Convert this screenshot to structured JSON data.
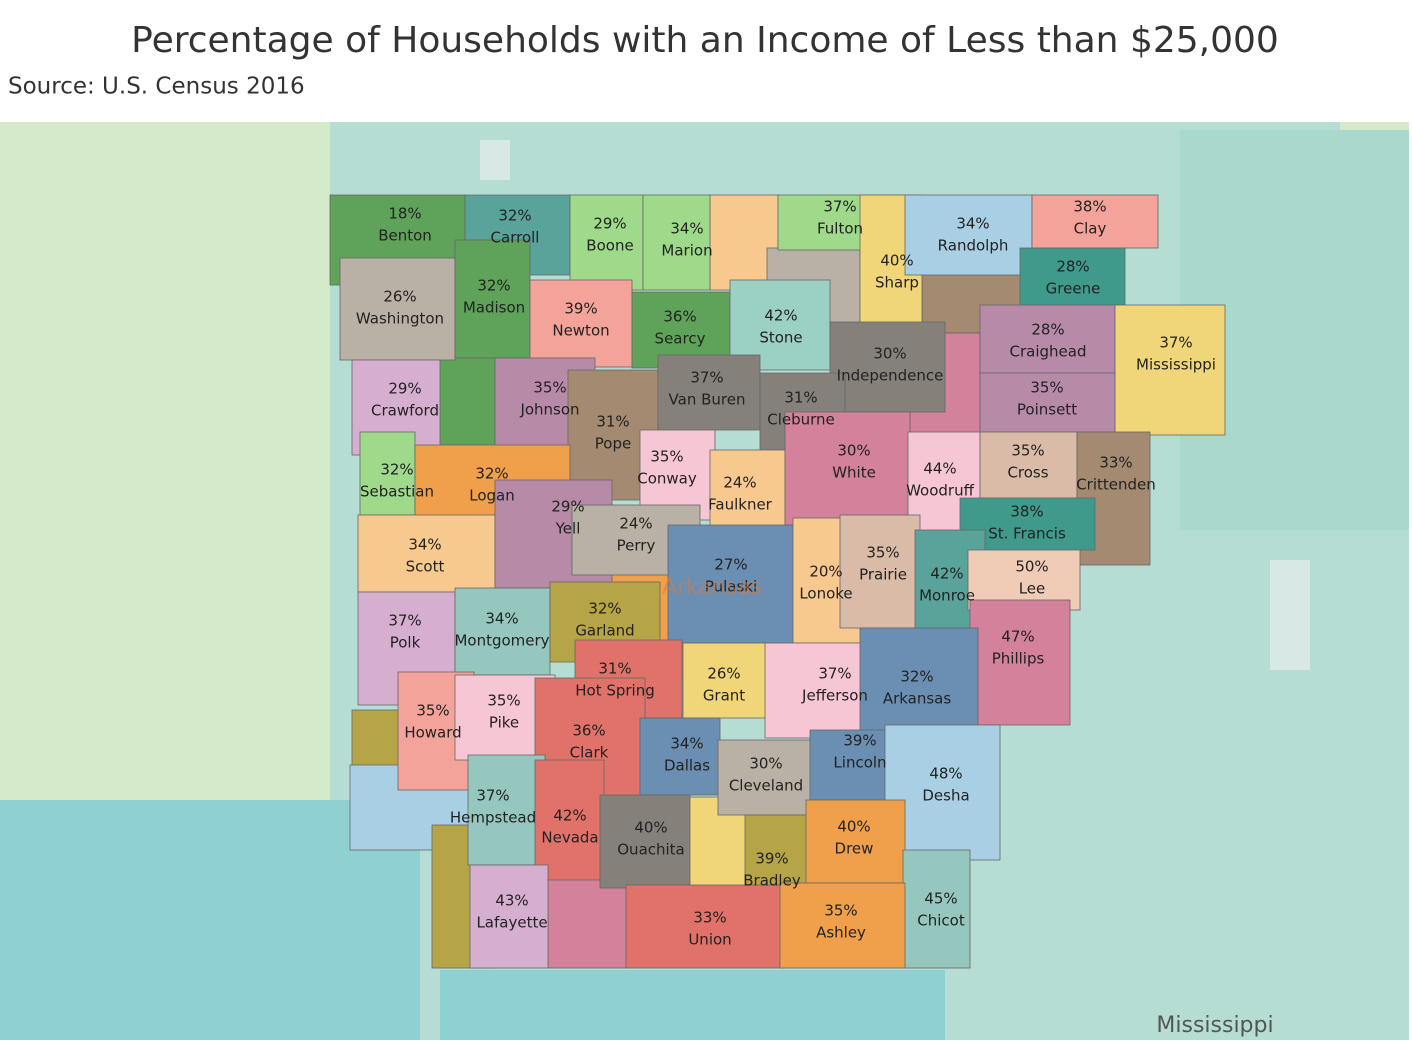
{
  "header": {
    "title": "Percentage of Households with an Income of Less than $25,000",
    "source": "Source: U.S. Census 2016"
  },
  "map": {
    "state_label": "Arkansas",
    "neighbor_label": "Mississippi",
    "counties": [
      {
        "name": "Benton",
        "value": 18,
        "label": "18%",
        "color": "#5fa35a"
      },
      {
        "name": "Carroll",
        "value": 32,
        "label": "32%",
        "color": "#5aa39a"
      },
      {
        "name": "Boone",
        "value": 29,
        "label": "29%",
        "color": "#9fd98a"
      },
      {
        "name": "Marion",
        "value": 34,
        "label": "34%",
        "color": "#9fd98a"
      },
      {
        "name": "Fulton",
        "value": 37,
        "label": "37%",
        "color": "#9fd98a"
      },
      {
        "name": "Sharp",
        "value": 40,
        "label": "40%",
        "color": "#f0d678"
      },
      {
        "name": "Randolph",
        "value": 34,
        "label": "34%",
        "color": "#a8cfe4"
      },
      {
        "name": "Clay",
        "value": 38,
        "label": "38%",
        "color": "#f4a39a"
      },
      {
        "name": "Greene",
        "value": 28,
        "label": "28%",
        "color": "#3f9a8c"
      },
      {
        "name": "Washington",
        "value": 26,
        "label": "26%",
        "color": "#bab1a6"
      },
      {
        "name": "Madison",
        "value": 32,
        "label": "32%",
        "color": "#5fa35a"
      },
      {
        "name": "Newton",
        "value": 39,
        "label": "39%",
        "color": "#f4a39a"
      },
      {
        "name": "Searcy",
        "value": 36,
        "label": "36%",
        "color": "#5fa35a"
      },
      {
        "name": "Stone",
        "value": 42,
        "label": "42%",
        "color": "#9bd0c4"
      },
      {
        "name": "Independence",
        "value": 30,
        "label": "30%",
        "color": "#85807a"
      },
      {
        "name": "Craighead",
        "value": 28,
        "label": "28%",
        "color": "#b78aa8"
      },
      {
        "name": "Mississippi",
        "value": 37,
        "label": "37%",
        "color": "#f0d678"
      },
      {
        "name": "Crawford",
        "value": 29,
        "label": "29%",
        "color": "#d6aed0"
      },
      {
        "name": "Johnson",
        "value": 35,
        "label": "35%",
        "color": "#b78aa8"
      },
      {
        "name": "Pope",
        "value": 31,
        "label": "31%",
        "color": "#a48a70"
      },
      {
        "name": "Van Buren",
        "value": 37,
        "label": "37%",
        "color": "#85807a"
      },
      {
        "name": "Cleburne",
        "value": 31,
        "label": "31%",
        "color": "#85807a"
      },
      {
        "name": "Poinsett",
        "value": 35,
        "label": "35%",
        "color": "#b78aa8"
      },
      {
        "name": "Sebastian",
        "value": 32,
        "label": "32%",
        "color": "#9fd98a"
      },
      {
        "name": "Logan",
        "value": 32,
        "label": "32%",
        "color": "#f0a04a"
      },
      {
        "name": "Conway",
        "value": 35,
        "label": "35%",
        "color": "#f6c6d4"
      },
      {
        "name": "Faulkner",
        "value": 24,
        "label": "24%",
        "color": "#f8c98e"
      },
      {
        "name": "White",
        "value": 30,
        "label": "30%",
        "color": "#d4819b"
      },
      {
        "name": "Woodruff",
        "value": 44,
        "label": "44%",
        "color": "#f6c6d4"
      },
      {
        "name": "Cross",
        "value": 35,
        "label": "35%",
        "color": "#d9bba8"
      },
      {
        "name": "Crittenden",
        "value": 33,
        "label": "33%",
        "color": "#a48a70"
      },
      {
        "name": "St. Francis",
        "value": 38,
        "label": "38%",
        "color": "#3f9a8c"
      },
      {
        "name": "Scott",
        "value": 34,
        "label": "34%",
        "color": "#f8c98e"
      },
      {
        "name": "Yell",
        "value": 29,
        "label": "29%",
        "color": "#b78aa8"
      },
      {
        "name": "Perry",
        "value": 24,
        "label": "24%",
        "color": "#bab1a6"
      },
      {
        "name": "Pulaski",
        "value": 27,
        "label": "27%",
        "color": "#6a8fb3"
      },
      {
        "name": "Lonoke",
        "value": 20,
        "label": "20%",
        "color": "#f8c98e"
      },
      {
        "name": "Prairie",
        "value": 35,
        "label": "35%",
        "color": "#d9bba8"
      },
      {
        "name": "Monroe",
        "value": 42,
        "label": "42%",
        "color": "#5aa39a"
      },
      {
        "name": "Lee",
        "value": 50,
        "label": "50%",
        "color": "#f0cbb5"
      },
      {
        "name": "Polk",
        "value": 37,
        "label": "37%",
        "color": "#d6aed0"
      },
      {
        "name": "Montgomery",
        "value": 34,
        "label": "34%",
        "color": "#95c7bf"
      },
      {
        "name": "Garland",
        "value": 32,
        "label": "32%",
        "color": "#b6a546"
      },
      {
        "name": "Phillips",
        "value": 47,
        "label": "47%",
        "color": "#d4819b"
      },
      {
        "name": "Hot Spring",
        "value": 31,
        "label": "31%",
        "color": "#e07269"
      },
      {
        "name": "Grant",
        "value": 26,
        "label": "26%",
        "color": "#f0d678"
      },
      {
        "name": "Jefferson",
        "value": 37,
        "label": "37%",
        "color": "#f6c6d4"
      },
      {
        "name": "Arkansas",
        "value": 32,
        "label": "32%",
        "color": "#6a8fb3"
      },
      {
        "name": "Howard",
        "value": 35,
        "label": "35%",
        "color": "#f4a39a"
      },
      {
        "name": "Pike",
        "value": 35,
        "label": "35%",
        "color": "#f6c6d4"
      },
      {
        "name": "Clark",
        "value": 36,
        "label": "36%",
        "color": "#e07269"
      },
      {
        "name": "Dallas",
        "value": 34,
        "label": "34%",
        "color": "#6a8fb3"
      },
      {
        "name": "Cleveland",
        "value": 30,
        "label": "30%",
        "color": "#bab1a6"
      },
      {
        "name": "Lincoln",
        "value": 39,
        "label": "39%",
        "color": "#6a8fb3"
      },
      {
        "name": "Desha",
        "value": 48,
        "label": "48%",
        "color": "#a8cfe4"
      },
      {
        "name": "Hempstead",
        "value": 37,
        "label": "37%",
        "color": "#95c7bf"
      },
      {
        "name": "Nevada",
        "value": 42,
        "label": "42%",
        "color": "#e07269"
      },
      {
        "name": "Ouachita",
        "value": 40,
        "label": "40%",
        "color": "#85807a"
      },
      {
        "name": "Bradley",
        "value": 39,
        "label": "39%",
        "color": "#b6a546"
      },
      {
        "name": "Drew",
        "value": 40,
        "label": "40%",
        "color": "#f0a04a"
      },
      {
        "name": "Chicot",
        "value": 45,
        "label": "45%",
        "color": "#95c7bf"
      },
      {
        "name": "Lafayette",
        "value": 43,
        "label": "43%",
        "color": "#d6aed0"
      },
      {
        "name": "Union",
        "value": 33,
        "label": "33%",
        "color": "#e07269"
      },
      {
        "name": "Ashley",
        "value": 35,
        "label": "35%",
        "color": "#f0a04a"
      }
    ]
  }
}
